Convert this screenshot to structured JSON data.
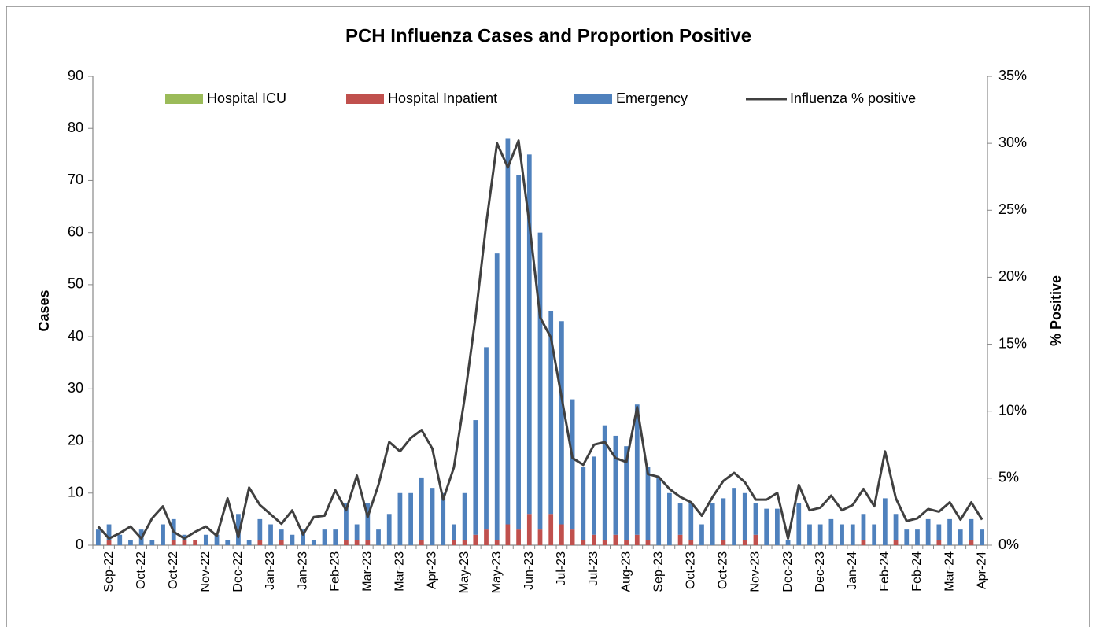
{
  "chart_data": {
    "type": "bar",
    "title": "PCH Influenza Cases and Proportion Positive",
    "ylabel": "Cases",
    "y2label": "% Positive",
    "stacked": true,
    "legend": "top",
    "grid": false,
    "categories": [
      null,
      "Sep-22",
      null,
      null,
      "Oct-22",
      null,
      null,
      "Oct-22",
      null,
      null,
      "Nov-22",
      null,
      null,
      "Dec-22",
      null,
      null,
      "Jan-23",
      null,
      null,
      "Jan-23",
      null,
      null,
      "Feb-23",
      null,
      null,
      "Mar-23",
      null,
      null,
      "Mar-23",
      null,
      null,
      "Apr-23",
      null,
      null,
      "May-23",
      null,
      null,
      "May-23",
      null,
      null,
      "Jun-23",
      null,
      null,
      "Jul-23",
      null,
      null,
      "Jul-23",
      null,
      null,
      "Aug-23",
      null,
      null,
      "Sep-23",
      null,
      null,
      "Oct-23",
      null,
      null,
      "Oct-23",
      null,
      null,
      "Nov-23",
      null,
      null,
      "Dec-23",
      null,
      null,
      "Dec-23",
      null,
      null,
      "Jan-24",
      null,
      null,
      "Feb-24",
      null,
      null,
      "Feb-24",
      null,
      null,
      "Mar-24",
      null,
      null,
      "Apr-24"
    ],
    "series": [
      {
        "name": "Hospital ICU",
        "color": "#9bbb59",
        "values": [
          0,
          0,
          0,
          0,
          0,
          0,
          0,
          0,
          0,
          0,
          0,
          0,
          0,
          0,
          0,
          0,
          0,
          0,
          0,
          0,
          0,
          0,
          0,
          0,
          0,
          0,
          0,
          0,
          0,
          0,
          0,
          0,
          0,
          0,
          0,
          0,
          0,
          0,
          0,
          0,
          0,
          0,
          0,
          0,
          0,
          0,
          0,
          0,
          0,
          0,
          0,
          0,
          0,
          0,
          0,
          0,
          0,
          0,
          0,
          0,
          0,
          0,
          0,
          0,
          0,
          0,
          0,
          0,
          0,
          0,
          0,
          0,
          0,
          0,
          0,
          0,
          0,
          0,
          0,
          0,
          0,
          0,
          0
        ]
      },
      {
        "name": "Hospital Inpatient",
        "color": "#c0504d",
        "values": [
          0,
          1,
          0,
          0,
          0,
          0,
          0,
          1,
          1,
          1,
          0,
          0,
          0,
          0,
          0,
          1,
          0,
          1,
          0,
          0,
          0,
          0,
          0,
          1,
          1,
          1,
          0,
          0,
          0,
          0,
          1,
          0,
          0,
          1,
          1,
          2,
          3,
          1,
          4,
          3,
          6,
          3,
          6,
          4,
          3,
          1,
          2,
          1,
          2,
          1,
          2,
          1,
          0,
          0,
          2,
          1,
          0,
          0,
          1,
          0,
          1,
          2,
          0,
          0,
          0,
          0,
          0,
          0,
          0,
          0,
          0,
          1,
          0,
          0,
          1,
          0,
          0,
          0,
          1,
          0,
          0,
          1,
          0
        ]
      },
      {
        "name": "Emergency",
        "color": "#4f81bd",
        "values": [
          3,
          3,
          2,
          1,
          3,
          1,
          4,
          4,
          1,
          0,
          2,
          2,
          1,
          6,
          1,
          4,
          4,
          2,
          2,
          3,
          1,
          3,
          3,
          7,
          3,
          7,
          3,
          6,
          10,
          10,
          12,
          11,
          10,
          3,
          9,
          22,
          35,
          55,
          74,
          68,
          69,
          57,
          39,
          39,
          25,
          14,
          15,
          22,
          19,
          18,
          25,
          14,
          13,
          10,
          6,
          7,
          4,
          8,
          8,
          11,
          9,
          6,
          7,
          7,
          1,
          8,
          4,
          4,
          5,
          4,
          4,
          5,
          4,
          9,
          5,
          3,
          3,
          5,
          3,
          5,
          3,
          4,
          3
        ]
      },
      {
        "name": "Influenza % positive",
        "color": "#404040",
        "type": "line",
        "axis": "y2",
        "values": [
          1.4,
          0.5,
          0.9,
          1.4,
          0.5,
          2.0,
          2.9,
          1.0,
          0.5,
          1.0,
          1.4,
          0.7,
          3.5,
          0.6,
          4.3,
          3.0,
          2.3,
          1.6,
          2.6,
          0.8,
          2.1,
          2.2,
          4.1,
          2.6,
          5.2,
          2.1,
          4.5,
          7.7,
          7.0,
          8.0,
          8.6,
          7.2,
          3.4,
          5.8,
          11.0,
          17.0,
          24.0,
          30.0,
          28.2,
          30.2,
          24.0,
          17.0,
          15.5,
          11.0,
          6.5,
          6.0,
          7.5,
          7.7,
          6.5,
          6.2,
          10.3,
          5.3,
          5.1,
          4.2,
          3.6,
          3.2,
          2.2,
          3.6,
          4.8,
          5.4,
          4.7,
          3.4,
          3.4,
          3.9,
          0.5,
          4.5,
          2.6,
          2.8,
          3.7,
          2.6,
          3.0,
          4.2,
          2.9,
          7.0,
          3.5,
          1.8,
          2.0,
          2.7,
          2.5,
          3.2,
          1.9,
          3.2,
          1.9
        ]
      }
    ],
    "ylim": [
      0,
      90
    ],
    "yticks": [
      0,
      10,
      20,
      30,
      40,
      50,
      60,
      70,
      80,
      90
    ],
    "y2lim": [
      0,
      35
    ],
    "y2ticks": [
      {
        "value": 0,
        "label": "0%"
      },
      {
        "value": 5,
        "label": "5%"
      },
      {
        "value": 10,
        "label": "10%"
      },
      {
        "value": 15,
        "label": "15%"
      },
      {
        "value": 20,
        "label": "20%"
      },
      {
        "value": 25,
        "label": "25%"
      },
      {
        "value": 30,
        "label": "30%"
      },
      {
        "value": 35,
        "label": "35%"
      }
    ]
  }
}
